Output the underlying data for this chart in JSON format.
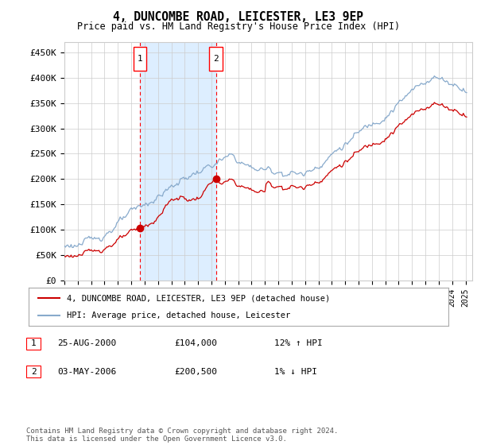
{
  "title": "4, DUNCOMBE ROAD, LEICESTER, LE3 9EP",
  "subtitle": "Price paid vs. HM Land Registry's House Price Index (HPI)",
  "ylabel_ticks": [
    "£0",
    "£50K",
    "£100K",
    "£150K",
    "£200K",
    "£250K",
    "£300K",
    "£350K",
    "£400K",
    "£450K"
  ],
  "ytick_values": [
    0,
    50000,
    100000,
    150000,
    200000,
    250000,
    300000,
    350000,
    400000,
    450000
  ],
  "ylim": [
    0,
    470000
  ],
  "xlim_start": 1995.0,
  "xlim_end": 2025.5,
  "transaction1_year": 2000.65,
  "transaction1_price": 104000,
  "transaction2_year": 2006.33,
  "transaction2_price": 200500,
  "line_color_property": "#cc0000",
  "line_color_hpi": "#88aacc",
  "grid_color": "#cccccc",
  "shade_color": "#ddeeff",
  "bg_color": "#ffffff",
  "legend_label1": "4, DUNCOMBE ROAD, LEICESTER, LE3 9EP (detached house)",
  "legend_label2": "HPI: Average price, detached house, Leicester",
  "table_row1": [
    "1",
    "25-AUG-2000",
    "£104,000",
    "12% ↑ HPI"
  ],
  "table_row2": [
    "2",
    "03-MAY-2006",
    "£200,500",
    "1% ↓ HPI"
  ],
  "footer": "Contains HM Land Registry data © Crown copyright and database right 2024.\nThis data is licensed under the Open Government Licence v3.0."
}
